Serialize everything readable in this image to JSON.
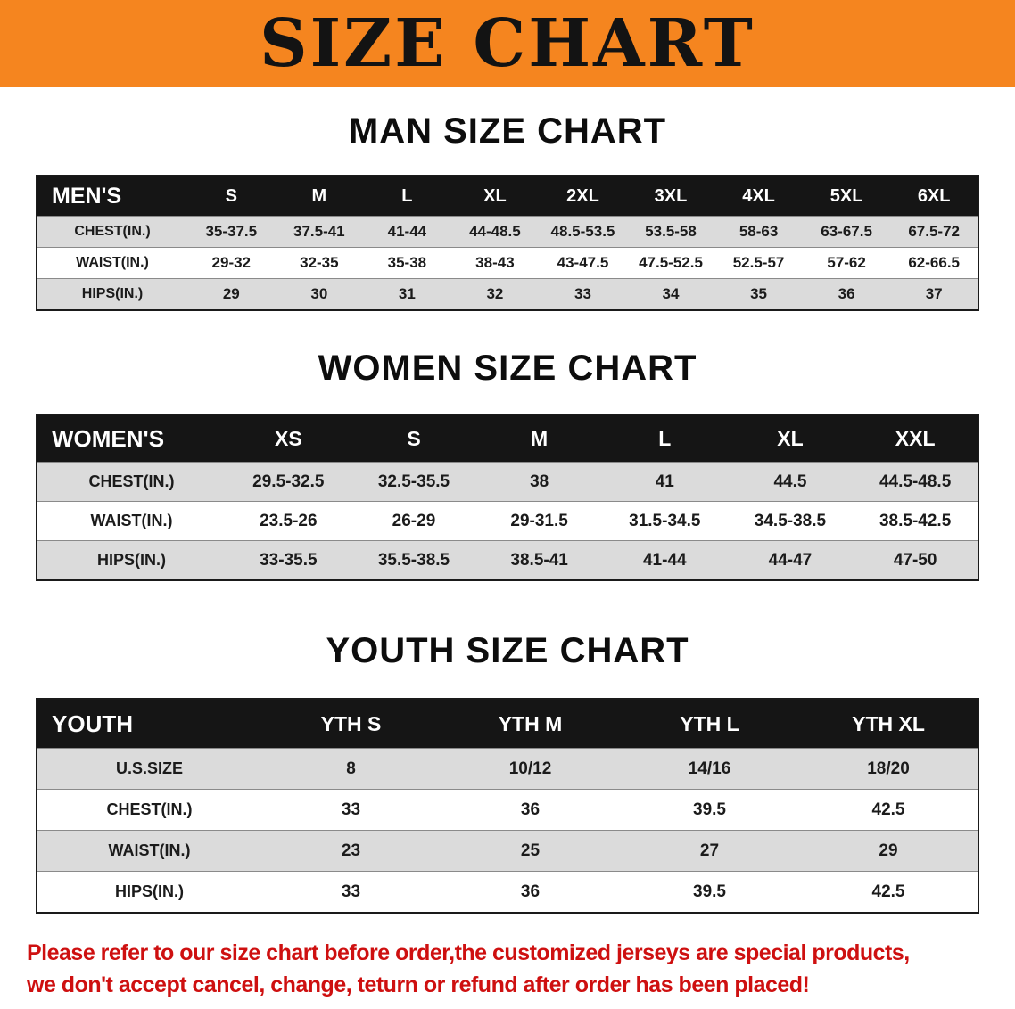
{
  "banner": {
    "title": "SIZE CHART"
  },
  "colors": {
    "banner_bg": "#F5851F",
    "table_header_bg": "#151515",
    "row_stripe": "#DBDBDB",
    "footer_text": "#CE1010"
  },
  "sections": {
    "men": {
      "heading": "MAN SIZE CHART",
      "table": {
        "header": [
          "MEN'S",
          "S",
          "M",
          "L",
          "XL",
          "2XL",
          "3XL",
          "4XL",
          "5XL",
          "6XL"
        ],
        "rows": [
          [
            "CHEST(IN.)",
            "35-37.5",
            "37.5-41",
            "41-44",
            "44-48.5",
            "48.5-53.5",
            "53.5-58",
            "58-63",
            "63-67.5",
            "67.5-72"
          ],
          [
            "WAIST(IN.)",
            "29-32",
            "32-35",
            "35-38",
            "38-43",
            "43-47.5",
            "47.5-52.5",
            "52.5-57",
            "57-62",
            "62-66.5"
          ],
          [
            "HIPS(IN.)",
            "29",
            "30",
            "31",
            "32",
            "33",
            "34",
            "35",
            "36",
            "37"
          ]
        ]
      }
    },
    "women": {
      "heading": "WOMEN SIZE CHART",
      "table": {
        "header": [
          "WOMEN'S",
          "XS",
          "S",
          "M",
          "L",
          "XL",
          "XXL"
        ],
        "rows": [
          [
            "CHEST(IN.)",
            "29.5-32.5",
            "32.5-35.5",
            "38",
            "41",
            "44.5",
            "44.5-48.5"
          ],
          [
            "WAIST(IN.)",
            "23.5-26",
            "26-29",
            "29-31.5",
            "31.5-34.5",
            "34.5-38.5",
            "38.5-42.5"
          ],
          [
            "HIPS(IN.)",
            "33-35.5",
            "35.5-38.5",
            "38.5-41",
            "41-44",
            "44-47",
            "47-50"
          ]
        ]
      }
    },
    "youth": {
      "heading": "YOUTH SIZE CHART",
      "table": {
        "header": [
          "YOUTH",
          "YTH S",
          "YTH M",
          "YTH L",
          "YTH XL"
        ],
        "rows": [
          [
            "U.S.SIZE",
            "8",
            "10/12",
            "14/16",
            "18/20"
          ],
          [
            "CHEST(IN.)",
            "33",
            "36",
            "39.5",
            "42.5"
          ],
          [
            "WAIST(IN.)",
            "23",
            "25",
            "27",
            "29"
          ],
          [
            "HIPS(IN.)",
            "33",
            "36",
            "39.5",
            "42.5"
          ]
        ]
      }
    }
  },
  "footer": {
    "line1": "Please refer to our size chart before order,the customized jerseys are special products,",
    "line2": "we don't accept cancel, change, teturn or refund after order has been placed!"
  }
}
